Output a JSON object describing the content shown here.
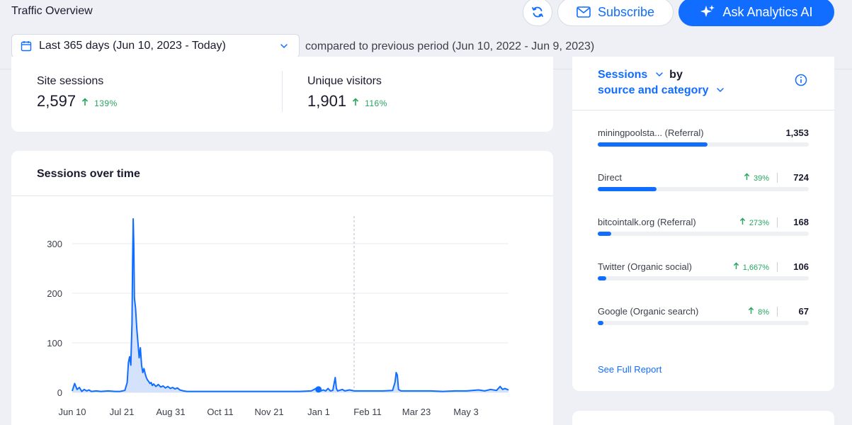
{
  "header": {
    "title": "Traffic Overview",
    "subscribe_label": "Subscribe",
    "ai_label": "Ask Analytics AI"
  },
  "filters": {
    "date_range": "Last 365 days (Jun 10, 2023 - Today)",
    "compared_text": "compared to previous period (Jun 10, 2022 - Jun 9, 2023)"
  },
  "stats": [
    {
      "label": "Site sessions",
      "value": "2,597",
      "change": "139%"
    },
    {
      "label": "Unique visitors",
      "value": "1,901",
      "change": "116%"
    }
  ],
  "sessions_chart": {
    "title": "Sessions over time",
    "chart_data": {
      "type": "area",
      "x_labels": [
        "Jun 10",
        "Jul 21",
        "Aug 31",
        "Oct 11",
        "Nov 21",
        "Jan 1",
        "Feb 11",
        "Mar 23",
        "May 3"
      ],
      "y_ticks": [
        0,
        100,
        200,
        300
      ],
      "ylim": [
        0,
        350
      ],
      "grid": true,
      "series": [
        {
          "color": "#116dff",
          "points": [
            [
              0,
              3
            ],
            [
              2,
              18
            ],
            [
              4,
              6
            ],
            [
              6,
              10
            ],
            [
              8,
              2
            ],
            [
              10,
              6
            ],
            [
              12,
              3
            ],
            [
              14,
              5
            ],
            [
              16,
              2
            ],
            [
              20,
              3
            ],
            [
              24,
              2
            ],
            [
              30,
              3
            ],
            [
              36,
              2
            ],
            [
              40,
              2
            ],
            [
              44,
              4
            ],
            [
              46,
              20
            ],
            [
              47,
              60
            ],
            [
              48,
              72
            ],
            [
              49,
              55
            ],
            [
              50,
              140
            ],
            [
              50.5,
              260
            ],
            [
              51,
              350
            ],
            [
              51.5,
              300
            ],
            [
              52,
              190
            ],
            [
              53,
              170
            ],
            [
              54,
              130
            ],
            [
              55,
              100
            ],
            [
              56,
              70
            ],
            [
              57,
              90
            ],
            [
              58,
              55
            ],
            [
              59,
              40
            ],
            [
              60,
              48
            ],
            [
              61,
              38
            ],
            [
              62,
              30
            ],
            [
              63,
              25
            ],
            [
              64,
              22
            ],
            [
              65,
              18
            ],
            [
              66,
              20
            ],
            [
              67,
              14
            ],
            [
              68,
              17
            ],
            [
              70,
              12
            ],
            [
              72,
              16
            ],
            [
              74,
              11
            ],
            [
              76,
              13
            ],
            [
              78,
              9
            ],
            [
              80,
              12
            ],
            [
              82,
              8
            ],
            [
              84,
              10
            ],
            [
              86,
              7
            ],
            [
              88,
              9
            ],
            [
              90,
              5
            ],
            [
              93,
              3
            ],
            [
              96,
              2
            ],
            [
              100,
              2
            ],
            [
              110,
              2
            ],
            [
              120,
              2
            ],
            [
              130,
              2
            ],
            [
              140,
              2
            ],
            [
              150,
              2
            ],
            [
              160,
              2
            ],
            [
              170,
              2
            ],
            [
              180,
              2
            ],
            [
              190,
              2
            ],
            [
              200,
              3
            ],
            [
              204,
              8
            ],
            [
              206,
              4
            ],
            [
              208,
              3
            ],
            [
              210,
              5
            ],
            [
              212,
              3
            ],
            [
              214,
              8
            ],
            [
              216,
              3
            ],
            [
              218,
              4
            ],
            [
              220,
              30
            ],
            [
              221,
              8
            ],
            [
              222,
              3
            ],
            [
              226,
              6
            ],
            [
              228,
              3
            ],
            [
              232,
              5
            ],
            [
              236,
              3
            ],
            [
              240,
              3
            ],
            [
              250,
              3
            ],
            [
              260,
              3
            ],
            [
              268,
              4
            ],
            [
              270,
              20
            ],
            [
              271,
              40
            ],
            [
              272,
              35
            ],
            [
              273,
              6
            ],
            [
              275,
              3
            ],
            [
              280,
              3
            ],
            [
              290,
              3
            ],
            [
              300,
              3
            ],
            [
              310,
              2
            ],
            [
              320,
              3
            ],
            [
              330,
              3
            ],
            [
              340,
              5
            ],
            [
              345,
              3
            ],
            [
              350,
              6
            ],
            [
              355,
              4
            ],
            [
              358,
              12
            ],
            [
              360,
              6
            ],
            [
              362,
              8
            ],
            [
              365,
              5
            ]
          ]
        }
      ],
      "highlight_point": [
        206,
        6
      ]
    }
  },
  "sources": {
    "metric_label": "Sessions",
    "by_label": "by",
    "dimension_label": "source and category",
    "items": [
      {
        "name": "miningpoolsta... (Referral)",
        "change": "",
        "count": "1,353",
        "share": 0.52
      },
      {
        "name": "Direct",
        "change": "39%",
        "count": "724",
        "share": 0.28
      },
      {
        "name": "bitcointalk.org (Referral)",
        "change": "273%",
        "count": "168",
        "share": 0.065
      },
      {
        "name": "Twitter (Organic social)",
        "change": "1,667%",
        "count": "106",
        "share": 0.04
      },
      {
        "name": "Google (Organic search)",
        "change": "8%",
        "count": "67",
        "share": 0.026
      }
    ],
    "full_report_label": "See Full Report"
  }
}
